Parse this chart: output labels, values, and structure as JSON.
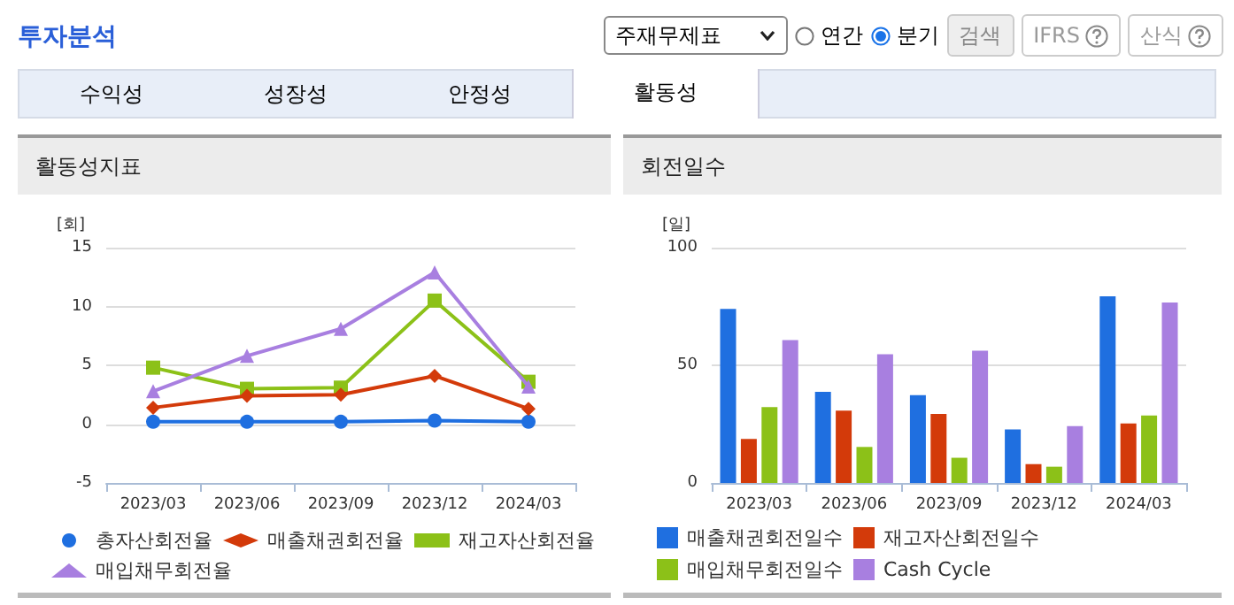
{
  "chart_data": [
    {
      "type": "other",
      "title": "투자분석",
      "annotations": [
        "주재무제표",
        "연간",
        "분기",
        "검색",
        "IFRS",
        "산식",
        "수익성",
        "성장성",
        "안정성",
        "활동성"
      ]
    },
    {
      "type": "line",
      "title": "활동성지표",
      "ylabel": "[회]",
      "categories": [
        "2023/03",
        "2023/06",
        "2023/09",
        "2023/12",
        "2024/03"
      ],
      "ylim": [
        -5,
        15
      ],
      "yticks": [
        -5,
        0,
        5,
        10,
        15
      ],
      "grid": "y",
      "legend": "bottom",
      "line_style": "solid",
      "series": [
        {
          "name": "총자산회전율",
          "color": "#1f6fe0",
          "marker": "circle",
          "values": [
            0.2,
            0.2,
            0.2,
            0.3,
            0.2
          ]
        },
        {
          "name": "매출채권회전율",
          "color": "#d33a0a",
          "marker": "diamond",
          "values": [
            1.4,
            2.4,
            2.5,
            4.1,
            1.3
          ]
        },
        {
          "name": "재고자산회전율",
          "color": "#8cc118",
          "marker": "square",
          "values": [
            4.8,
            3.0,
            3.1,
            10.5,
            3.6
          ]
        },
        {
          "name": "매입채무회전율",
          "color": "#a87fe0",
          "marker": "triangle",
          "values": [
            2.8,
            5.8,
            8.1,
            12.9,
            3.2
          ]
        }
      ]
    },
    {
      "type": "bar",
      "title": "회전일수",
      "ylabel": "[일]",
      "categories": [
        "2023/03",
        "2023/06",
        "2023/09",
        "2023/12",
        "2024/03"
      ],
      "ylim": [
        0,
        100
      ],
      "yticks": [
        0,
        50,
        100
      ],
      "grid": "y",
      "legend": "bottom",
      "series": [
        {
          "name": "매출채권회전일수",
          "color": "#1f6fe0",
          "values": [
            74,
            38.7,
            37.3,
            22.7,
            79.3
          ]
        },
        {
          "name": "재고자산회전일수",
          "color": "#d33a0a",
          "values": [
            18.7,
            30.7,
            29.3,
            8,
            25.3
          ]
        },
        {
          "name": "매입채무회전일수",
          "color": "#8cc118",
          "values": [
            32.2,
            15.3,
            10.7,
            6.9,
            28.7
          ]
        },
        {
          "name": "Cash Cycle",
          "color": "#a87fe0",
          "values": [
            60.7,
            54.7,
            56.2,
            24.2,
            76.7
          ]
        }
      ]
    }
  ]
}
